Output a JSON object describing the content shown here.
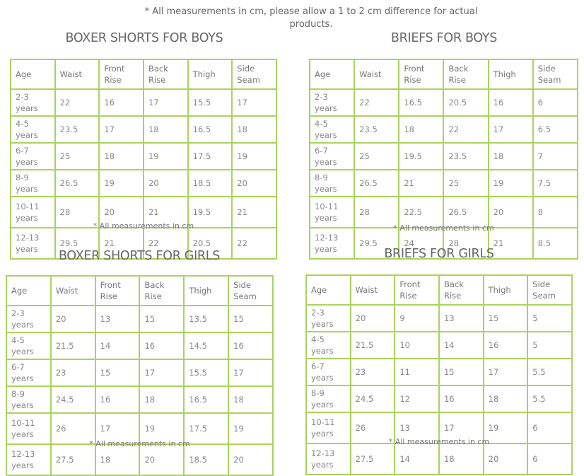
{
  "top_note": "* All measurements in cm, please allow a 1 to 2 cm difference for actual products.",
  "border_color": "#a9d45c",
  "tables": [
    {
      "title": "BOXER SHORTS FOR BOYS",
      "headers": [
        "Age",
        "Waist",
        "Front Rise",
        "Back Rise",
        "Thigh",
        "Side Seam"
      ],
      "rows": [
        [
          "2-3 years",
          "22",
          "16",
          "17",
          "15.5",
          "17"
        ],
        [
          "4-5 years",
          "23.5",
          "17",
          "18",
          "16.5",
          "18"
        ],
        [
          "6-7 years",
          "25",
          "18",
          "19",
          "17.5",
          "19"
        ],
        [
          "8-9 years",
          "26.5",
          "19",
          "20",
          "18.5",
          "20"
        ],
        [
          "10-11 years",
          "28",
          "20",
          "21",
          "19.5",
          "21"
        ],
        [
          "12-13 years",
          "29.5",
          "21",
          "22",
          "20.5",
          "22"
        ]
      ],
      "note": "* All measurements in cm"
    },
    {
      "title": "BRIEFS FOR BOYS",
      "headers": [
        "Age",
        "Waist",
        "Front Rise",
        "Back Rise",
        "Thigh",
        "Side Seam"
      ],
      "rows": [
        [
          "2-3 years",
          "22",
          "16.5",
          "20.5",
          "16",
          "6"
        ],
        [
          "4-5 years",
          "23.5",
          "18",
          "22",
          "17",
          "6.5"
        ],
        [
          "6-7 years",
          "25",
          "19.5",
          "23.5",
          "18",
          "7"
        ],
        [
          "8-9 years",
          "26.5",
          "21",
          "25",
          "19",
          "7.5"
        ],
        [
          "10-11 years",
          "28",
          "22.5",
          "26.5",
          "20",
          "8"
        ],
        [
          "12-13 years",
          "29.5",
          "24",
          "28",
          "21",
          "8.5"
        ]
      ],
      "note": "* All measurements in cm"
    },
    {
      "title": "BOXER SHORTS FOR GIRLS",
      "headers": [
        "Age",
        "Waist",
        "Front Rise",
        "Back Rise",
        "Thigh",
        "Side Seam"
      ],
      "rows": [
        [
          "2-3 years",
          "20",
          "13",
          "15",
          "13.5",
          "15"
        ],
        [
          "4-5 years",
          "21.5",
          "14",
          "16",
          "14.5",
          "16"
        ],
        [
          "6-7 years",
          "23",
          "15",
          "17",
          "15.5",
          "17"
        ],
        [
          "8-9 years",
          "24.5",
          "16",
          "18",
          "16.5",
          "18"
        ],
        [
          "10-11 years",
          "26",
          "17",
          "19",
          "17.5",
          "19"
        ],
        [
          "12-13 years",
          "27.5",
          "18",
          "20",
          "18.5",
          "20"
        ]
      ],
      "note": "* All measurements in cm"
    },
    {
      "title": "BRIEFS FOR GIRLS",
      "headers": [
        "Age",
        "Waist",
        "Front Rise",
        "Back Rise",
        "Thigh",
        "Side Seam"
      ],
      "rows": [
        [
          "2-3 years",
          "20",
          "9",
          "13",
          "15",
          "5"
        ],
        [
          "4-5 years",
          "21.5",
          "10",
          "14",
          "16",
          "5"
        ],
        [
          "6-7 years",
          "23",
          "11",
          "15",
          "17",
          "5.5"
        ],
        [
          "8-9 years",
          "24.5",
          "12",
          "16",
          "18",
          "5.5"
        ],
        [
          "10-11 years",
          "26",
          "13",
          "17",
          "19",
          "6"
        ],
        [
          "12-13 years",
          "27.5",
          "14",
          "18",
          "20",
          "6"
        ]
      ],
      "note": "* All measurements in cm"
    }
  ]
}
